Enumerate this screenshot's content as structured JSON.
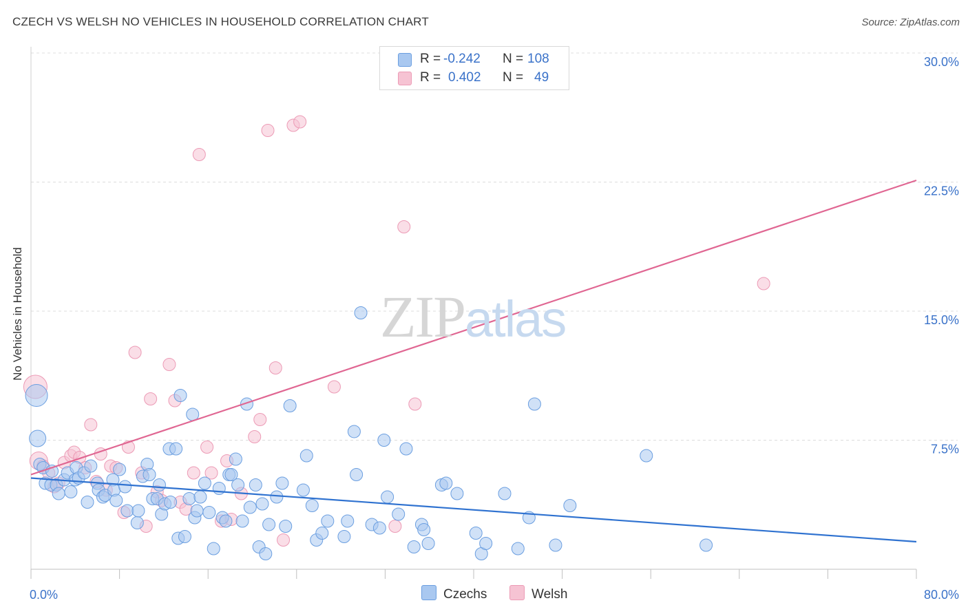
{
  "header": {
    "title": "CZECH VS WELSH NO VEHICLES IN HOUSEHOLD CORRELATION CHART",
    "source": "Source: ZipAtlas.com"
  },
  "watermark": {
    "zip": "ZIP",
    "atlas": "atlas"
  },
  "stats": {
    "czechs": {
      "r_label": "R =",
      "r_value": "-0.242",
      "n_label": "N =",
      "n_value": "108"
    },
    "welsh": {
      "r_label": "R =",
      "r_value": "0.402",
      "n_label": "N =",
      "n_value": "49"
    }
  },
  "legend": {
    "czechs": "Czechs",
    "welsh": "Welsh"
  },
  "colors": {
    "czechs_fill": "#a9c8f0",
    "czechs_stroke": "#6a9ee0",
    "czechs_line": "#2f72d0",
    "welsh_fill": "#f6c3d3",
    "welsh_stroke": "#ec9ab5",
    "welsh_line": "#e06692",
    "tick_label": "#3a72c9"
  },
  "chart_data": {
    "type": "scatter",
    "title": "CZECH VS WELSH NO VEHICLES IN HOUSEHOLD CORRELATION CHART",
    "xlabel": "",
    "ylabel": "No Vehicles in Household",
    "xlim": [
      0,
      80
    ],
    "ylim": [
      0,
      30
    ],
    "x_tick_labels": [
      "0.0%",
      "80.0%"
    ],
    "y_ticks": [
      7.5,
      15.0,
      22.5,
      30.0
    ],
    "y_tick_labels": [
      "7.5%",
      "15.0%",
      "22.5%",
      "30.0%"
    ],
    "grid": "horizontal dashed",
    "legend_position": "bottom-center",
    "series": [
      {
        "name": "Czechs",
        "trend": {
          "x": [
            0,
            80
          ],
          "y": [
            5.3,
            1.6
          ]
        },
        "points": [
          [
            0.5,
            10.1
          ],
          [
            0.6,
            7.6
          ],
          [
            0.8,
            6.1
          ],
          [
            1.1,
            5.9
          ],
          [
            1.3,
            5.0
          ],
          [
            1.8,
            4.9
          ],
          [
            1.9,
            5.7
          ],
          [
            2.3,
            4.9
          ],
          [
            2.5,
            4.4
          ],
          [
            3.0,
            5.2
          ],
          [
            3.3,
            5.6
          ],
          [
            3.6,
            4.5
          ],
          [
            4.0,
            5.2
          ],
          [
            4.1,
            5.9
          ],
          [
            4.3,
            5.3
          ],
          [
            4.8,
            5.6
          ],
          [
            5.1,
            3.9
          ],
          [
            5.4,
            6.0
          ],
          [
            6.0,
            5.0
          ],
          [
            6.1,
            4.6
          ],
          [
            6.5,
            4.2
          ],
          [
            6.7,
            4.3
          ],
          [
            7.4,
            5.2
          ],
          [
            7.5,
            4.6
          ],
          [
            7.7,
            4.0
          ],
          [
            8.0,
            5.8
          ],
          [
            8.5,
            4.8
          ],
          [
            8.7,
            3.4
          ],
          [
            9.6,
            2.7
          ],
          [
            9.7,
            3.4
          ],
          [
            10.1,
            5.4
          ],
          [
            10.5,
            6.1
          ],
          [
            10.7,
            5.5
          ],
          [
            11.0,
            4.1
          ],
          [
            11.4,
            4.1
          ],
          [
            11.6,
            4.9
          ],
          [
            11.8,
            3.2
          ],
          [
            12.1,
            3.8
          ],
          [
            12.5,
            7.0
          ],
          [
            12.6,
            3.9
          ],
          [
            13.1,
            7.0
          ],
          [
            13.3,
            1.8
          ],
          [
            13.5,
            10.1
          ],
          [
            13.9,
            1.9
          ],
          [
            14.3,
            4.1
          ],
          [
            14.6,
            9.0
          ],
          [
            14.8,
            3.0
          ],
          [
            15.0,
            3.4
          ],
          [
            15.3,
            4.2
          ],
          [
            15.7,
            5.0
          ],
          [
            16.1,
            3.3
          ],
          [
            16.5,
            1.2
          ],
          [
            17.0,
            4.7
          ],
          [
            17.3,
            3.0
          ],
          [
            17.6,
            2.8
          ],
          [
            17.9,
            5.5
          ],
          [
            18.1,
            5.5
          ],
          [
            18.5,
            6.4
          ],
          [
            18.7,
            4.9
          ],
          [
            19.1,
            2.8
          ],
          [
            19.5,
            9.6
          ],
          [
            19.8,
            3.6
          ],
          [
            20.3,
            4.9
          ],
          [
            20.6,
            1.3
          ],
          [
            20.9,
            3.8
          ],
          [
            21.2,
            0.9
          ],
          [
            21.5,
            2.6
          ],
          [
            22.2,
            4.2
          ],
          [
            22.7,
            5.0
          ],
          [
            23.0,
            2.5
          ],
          [
            23.4,
            9.5
          ],
          [
            24.6,
            4.6
          ],
          [
            24.9,
            6.6
          ],
          [
            25.4,
            3.7
          ],
          [
            25.8,
            1.7
          ],
          [
            26.3,
            2.1
          ],
          [
            26.8,
            2.8
          ],
          [
            28.3,
            1.9
          ],
          [
            28.6,
            2.8
          ],
          [
            29.2,
            8.0
          ],
          [
            29.4,
            5.5
          ],
          [
            29.8,
            14.9
          ],
          [
            30.8,
            2.6
          ],
          [
            31.5,
            2.4
          ],
          [
            31.9,
            7.5
          ],
          [
            32.2,
            4.2
          ],
          [
            33.2,
            3.2
          ],
          [
            33.9,
            7.0
          ],
          [
            34.6,
            1.3
          ],
          [
            35.3,
            2.6
          ],
          [
            35.5,
            2.3
          ],
          [
            35.9,
            1.5
          ],
          [
            37.1,
            4.9
          ],
          [
            37.5,
            5.0
          ],
          [
            38.5,
            4.4
          ],
          [
            40.2,
            2.1
          ],
          [
            40.7,
            0.9
          ],
          [
            41.1,
            1.5
          ],
          [
            42.8,
            4.4
          ],
          [
            44.0,
            1.2
          ],
          [
            45.0,
            3.0
          ],
          [
            45.5,
            9.6
          ],
          [
            47.4,
            1.4
          ],
          [
            48.7,
            3.7
          ],
          [
            55.6,
            6.6
          ],
          [
            61.0,
            1.4
          ]
        ]
      },
      {
        "name": "Welsh",
        "trend": {
          "x": [
            0,
            80
          ],
          "y": [
            5.5,
            22.6
          ]
        },
        "points": [
          [
            0.4,
            10.6
          ],
          [
            0.7,
            6.3
          ],
          [
            1.1,
            6.0
          ],
          [
            1.6,
            5.6
          ],
          [
            2.1,
            4.8
          ],
          [
            2.5,
            5.0
          ],
          [
            3.0,
            6.2
          ],
          [
            3.6,
            6.6
          ],
          [
            3.9,
            6.8
          ],
          [
            4.4,
            6.5
          ],
          [
            4.9,
            5.9
          ],
          [
            5.4,
            8.4
          ],
          [
            5.9,
            5.1
          ],
          [
            6.3,
            6.7
          ],
          [
            6.8,
            4.6
          ],
          [
            7.2,
            6.0
          ],
          [
            7.7,
            5.9
          ],
          [
            8.4,
            3.3
          ],
          [
            8.8,
            7.1
          ],
          [
            9.4,
            12.6
          ],
          [
            10.0,
            5.6
          ],
          [
            10.4,
            2.5
          ],
          [
            10.8,
            9.9
          ],
          [
            11.4,
            4.5
          ],
          [
            11.8,
            4.0
          ],
          [
            12.5,
            11.9
          ],
          [
            13.0,
            9.8
          ],
          [
            13.5,
            3.9
          ],
          [
            14.0,
            3.5
          ],
          [
            14.7,
            5.6
          ],
          [
            15.2,
            24.1
          ],
          [
            15.9,
            7.1
          ],
          [
            16.3,
            5.6
          ],
          [
            17.2,
            2.8
          ],
          [
            17.7,
            6.3
          ],
          [
            18.1,
            2.9
          ],
          [
            19.0,
            4.4
          ],
          [
            20.2,
            7.7
          ],
          [
            20.7,
            8.7
          ],
          [
            21.4,
            25.5
          ],
          [
            22.1,
            11.7
          ],
          [
            22.8,
            1.7
          ],
          [
            23.7,
            25.8
          ],
          [
            24.3,
            26.0
          ],
          [
            27.4,
            10.6
          ],
          [
            32.9,
            2.5
          ],
          [
            33.7,
            19.9
          ],
          [
            34.7,
            9.6
          ],
          [
            66.2,
            16.6
          ]
        ]
      }
    ]
  }
}
